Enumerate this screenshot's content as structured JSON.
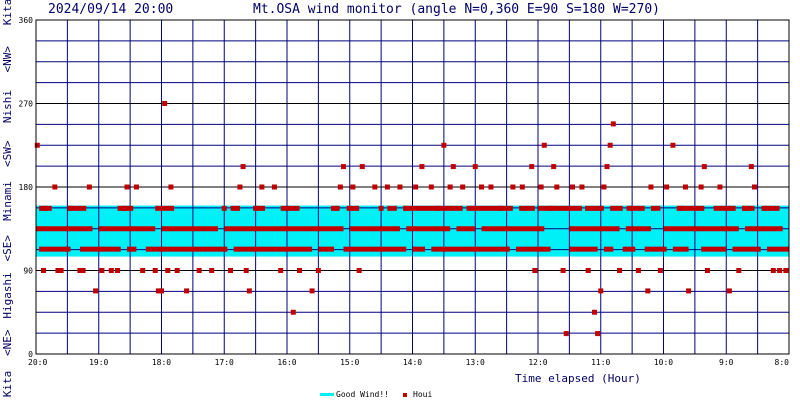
{
  "header": {
    "timestamp": "2024/09/14 20:00",
    "title": "Mt.OSA wind monitor (angle N=0,360 E=90 S=180 W=270)"
  },
  "side_labels": [
    "Kita",
    "<NE>",
    "Higashi",
    "<SE>",
    "Minami",
    "<SW>",
    "Nishi",
    "<NW>",
    "Kita"
  ],
  "chart_data": {
    "type": "scatter",
    "title": "Mt.OSA wind monitor (angle N=0,360 E=90 S=180 W=270)",
    "xlabel": "Time elapsed (Hour)",
    "ylabel": "",
    "x_tick_labels": [
      "20:0",
      "19:0",
      "18:0",
      "17:0",
      "16:0",
      "15:0",
      "14:0",
      "13:0",
      "12:0",
      "11:0",
      "10:0",
      "9:0",
      "8:0"
    ],
    "x_range_hours_elapsed": [
      0,
      12
    ],
    "x_reversed_time": true,
    "ylim": [
      0,
      360
    ],
    "y_ticks": [
      0,
      90,
      180,
      270,
      360
    ],
    "y_minor_grid_step": 22.5,
    "grid": true,
    "legend": {
      "placement": "bottom-center",
      "entries": [
        "Good Wind!!",
        "Houi"
      ]
    },
    "good_wind_band": {
      "name": "Good Wind!!",
      "from": 105,
      "to": 160,
      "color": "#00f0f8"
    },
    "series_name": "Houi",
    "points": [
      [
        0.02,
        225
      ],
      [
        0.12,
        90
      ],
      [
        0.15,
        157
      ],
      [
        0.3,
        180
      ],
      [
        0.35,
        90
      ],
      [
        0.4,
        90
      ],
      [
        0.55,
        157
      ],
      [
        0.7,
        90
      ],
      [
        0.75,
        90
      ],
      [
        0.85,
        180
      ],
      [
        0.95,
        68
      ],
      [
        1.05,
        90
      ],
      [
        1.2,
        90
      ],
      [
        1.3,
        90
      ],
      [
        1.4,
        157
      ],
      [
        1.45,
        180
      ],
      [
        1.6,
        180
      ],
      [
        1.7,
        90
      ],
      [
        1.9,
        90
      ],
      [
        1.95,
        68
      ],
      [
        2.0,
        68
      ],
      [
        2.05,
        270
      ],
      [
        2.1,
        90
      ],
      [
        2.15,
        180
      ],
      [
        2.25,
        90
      ],
      [
        2.4,
        68
      ],
      [
        2.6,
        90
      ],
      [
        2.8,
        90
      ],
      [
        3.0,
        157
      ],
      [
        3.1,
        90
      ],
      [
        3.25,
        180
      ],
      [
        3.3,
        202
      ],
      [
        3.35,
        90
      ],
      [
        3.4,
        68
      ],
      [
        3.5,
        157
      ],
      [
        3.6,
        180
      ],
      [
        3.8,
        180
      ],
      [
        3.9,
        90
      ],
      [
        4.1,
        45
      ],
      [
        4.2,
        90
      ],
      [
        4.4,
        68
      ],
      [
        4.5,
        90
      ],
      [
        4.8,
        157
      ],
      [
        4.85,
        180
      ],
      [
        4.9,
        202
      ],
      [
        5.05,
        180
      ],
      [
        5.15,
        90
      ],
      [
        5.2,
        202
      ],
      [
        5.4,
        180
      ],
      [
        5.5,
        157
      ],
      [
        5.6,
        180
      ],
      [
        5.8,
        180
      ],
      [
        5.9,
        157
      ],
      [
        6.05,
        180
      ],
      [
        6.15,
        202
      ],
      [
        6.3,
        180
      ],
      [
        6.4,
        157
      ],
      [
        6.5,
        225
      ],
      [
        6.6,
        180
      ],
      [
        6.65,
        202
      ],
      [
        6.8,
        180
      ],
      [
        6.9,
        157
      ],
      [
        7.0,
        202
      ],
      [
        7.1,
        180
      ],
      [
        7.25,
        180
      ],
      [
        7.4,
        157
      ],
      [
        7.6,
        180
      ],
      [
        7.75,
        180
      ],
      [
        7.9,
        202
      ],
      [
        7.95,
        90
      ],
      [
        8.05,
        180
      ],
      [
        8.1,
        225
      ],
      [
        8.2,
        157
      ],
      [
        8.25,
        202
      ],
      [
        8.3,
        180
      ],
      [
        8.4,
        90
      ],
      [
        8.45,
        22
      ],
      [
        8.55,
        180
      ],
      [
        8.7,
        180
      ],
      [
        8.8,
        90
      ],
      [
        8.9,
        45
      ],
      [
        8.95,
        22
      ],
      [
        9.0,
        68
      ],
      [
        9.05,
        180
      ],
      [
        9.1,
        202
      ],
      [
        9.15,
        225
      ],
      [
        9.2,
        248
      ],
      [
        9.3,
        90
      ],
      [
        9.45,
        157
      ],
      [
        9.6,
        90
      ],
      [
        9.75,
        68
      ],
      [
        9.8,
        180
      ],
      [
        9.95,
        90
      ],
      [
        10.05,
        180
      ],
      [
        10.15,
        225
      ],
      [
        10.25,
        157
      ],
      [
        10.35,
        180
      ],
      [
        10.4,
        68
      ],
      [
        10.6,
        180
      ],
      [
        10.65,
        202
      ],
      [
        10.7,
        90
      ],
      [
        10.9,
        180
      ],
      [
        11.05,
        68
      ],
      [
        11.2,
        90
      ],
      [
        11.3,
        157
      ],
      [
        11.4,
        202
      ],
      [
        11.45,
        180
      ],
      [
        11.6,
        157
      ],
      [
        11.75,
        90
      ],
      [
        11.85,
        90
      ],
      [
        11.95,
        90
      ]
    ],
    "dashes": [
      {
        "level": 157,
        "segments": [
          [
            0.05,
            0.25
          ],
          [
            0.5,
            0.8
          ],
          [
            1.3,
            1.55
          ],
          [
            1.9,
            2.2
          ],
          [
            3.1,
            3.25
          ],
          [
            3.5,
            3.65
          ],
          [
            3.9,
            4.2
          ],
          [
            4.7,
            4.8
          ],
          [
            4.95,
            5.15
          ],
          [
            5.6,
            5.75
          ],
          [
            5.85,
            6.8
          ],
          [
            6.9,
            7.6
          ],
          [
            7.7,
            7.95
          ],
          [
            8.0,
            8.7
          ],
          [
            8.75,
            9.05
          ],
          [
            9.15,
            9.35
          ],
          [
            9.45,
            9.7
          ],
          [
            9.8,
            9.95
          ],
          [
            10.25,
            10.65
          ],
          [
            10.8,
            11.15
          ],
          [
            11.25,
            11.45
          ],
          [
            11.6,
            11.85
          ]
        ]
      },
      {
        "level": 135,
        "segments": [
          [
            0.0,
            0.9
          ],
          [
            1.0,
            1.9
          ],
          [
            2.0,
            2.9
          ],
          [
            3.0,
            4.9
          ],
          [
            5.0,
            5.8
          ],
          [
            5.9,
            6.6
          ],
          [
            6.7,
            7.0
          ],
          [
            7.1,
            8.1
          ],
          [
            8.5,
            9.3
          ],
          [
            9.4,
            9.8
          ],
          [
            10.0,
            11.2
          ],
          [
            11.3,
            11.9
          ]
        ]
      },
      {
        "level": 113,
        "segments": [
          [
            0.05,
            0.55
          ],
          [
            0.7,
            1.35
          ],
          [
            1.45,
            1.6
          ],
          [
            1.75,
            3.05
          ],
          [
            3.15,
            4.4
          ],
          [
            4.5,
            4.75
          ],
          [
            4.9,
            5.9
          ],
          [
            6.0,
            6.2
          ],
          [
            6.3,
            7.55
          ],
          [
            7.65,
            8.2
          ],
          [
            8.5,
            8.95
          ],
          [
            9.05,
            9.2
          ],
          [
            9.35,
            9.55
          ],
          [
            9.7,
            10.05
          ],
          [
            10.15,
            10.4
          ],
          [
            10.6,
            11.0
          ],
          [
            11.1,
            11.55
          ],
          [
            11.65,
            12.0
          ]
        ]
      }
    ]
  }
}
